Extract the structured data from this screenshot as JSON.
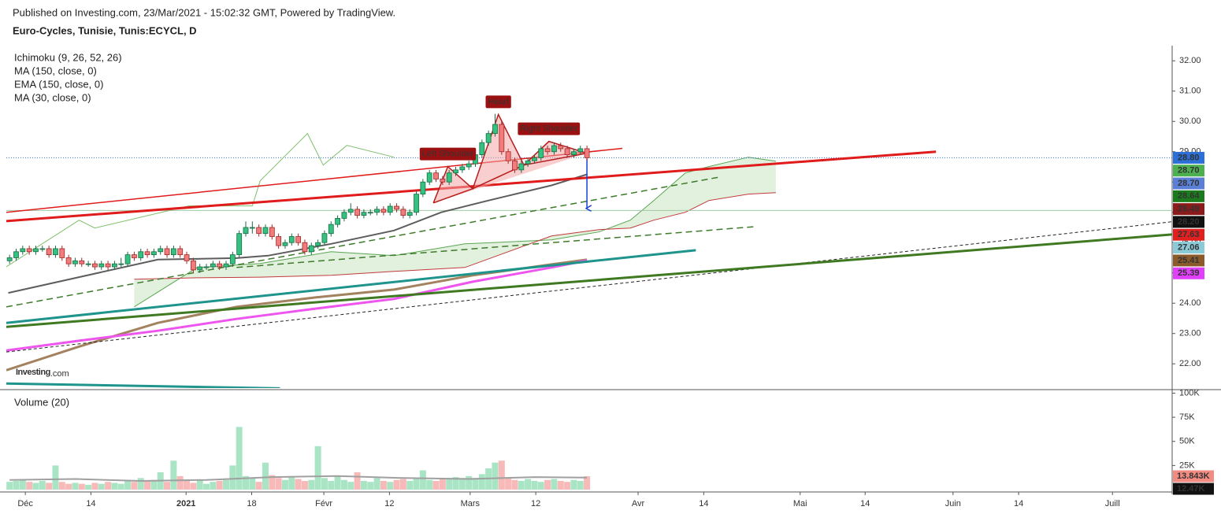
{
  "chart_data": {
    "type": "candlestick",
    "publisher": "Published on Investing.com, 23/Mar/2021 - 15:02:32 GMT, Powered by TradingView.",
    "title": "Euro-Cycles, Tunisie, Tunis:ECYCL, D",
    "indicators": [
      "Ichimoku (9, 26, 52, 26)",
      "MA (150, close, 0)",
      "EMA (150, close, 0)",
      "MA (30, close, 0)"
    ],
    "logo": {
      "brand": "Investing",
      "suffix": ".com"
    },
    "up_color": "#33c27f",
    "down_color": "#f17c7c",
    "up_edge": "#1c6b45",
    "down_edge": "#a02828",
    "xlim": [
      -0.5,
      177.2
    ],
    "xticks": [
      {
        "value": 2.4,
        "label": "Déc"
      },
      {
        "value": 12.4,
        "label": "14"
      },
      {
        "value": 26.9,
        "label": "2021"
      },
      {
        "value": 36.9,
        "label": "18"
      },
      {
        "value": 47.9,
        "label": "Févr"
      },
      {
        "value": 57.9,
        "label": "12"
      },
      {
        "value": 70.2,
        "label": "Mars"
      },
      {
        "value": 80.2,
        "label": "12"
      },
      {
        "value": 95.8,
        "label": "Avr"
      },
      {
        "value": 105.8,
        "label": "14"
      },
      {
        "value": 120.5,
        "label": "Mai"
      },
      {
        "value": 130.4,
        "label": "14"
      },
      {
        "value": 143.8,
        "label": "Juin"
      },
      {
        "value": 153.8,
        "label": "14"
      },
      {
        "value": 168.1,
        "label": "Juill"
      }
    ],
    "ylim": [
      21.2,
      32.5
    ],
    "yticks": [
      {
        "value": 22,
        "label": "22.00"
      },
      {
        "value": 23,
        "label": "23.00"
      },
      {
        "value": 24,
        "label": "24.00"
      },
      {
        "value": 25,
        "label": "25.00"
      },
      {
        "value": 26,
        "label": "26.00"
      },
      {
        "value": 27,
        "label": "27.00"
      },
      {
        "value": 28,
        "label": "28.00"
      },
      {
        "value": 29,
        "label": "29.00"
      },
      {
        "value": 30,
        "label": "30.00"
      },
      {
        "value": 31,
        "label": "31.00"
      },
      {
        "value": 32,
        "label": "32.00"
      }
    ],
    "ohlc": [
      [
        25.4,
        25.6,
        25.3,
        25.5
      ],
      [
        25.5,
        25.8,
        25.4,
        25.7
      ],
      [
        25.7,
        25.9,
        25.6,
        25.8
      ],
      [
        25.8,
        25.9,
        25.6,
        25.7
      ],
      [
        25.7,
        25.9,
        25.6,
        25.8
      ],
      [
        25.8,
        25.9,
        25.7,
        25.8
      ],
      [
        25.8,
        25.9,
        25.5,
        25.6
      ],
      [
        25.6,
        25.9,
        25.5,
        25.8
      ],
      [
        25.8,
        25.9,
        25.4,
        25.5
      ],
      [
        25.5,
        25.6,
        25.2,
        25.3
      ],
      [
        25.3,
        25.5,
        25.2,
        25.4
      ],
      [
        25.4,
        25.5,
        25.2,
        25.3
      ],
      [
        25.3,
        25.4,
        25.2,
        25.3
      ],
      [
        25.3,
        25.4,
        25.1,
        25.2
      ],
      [
        25.2,
        25.4,
        25.1,
        25.3
      ],
      [
        25.3,
        25.4,
        25.1,
        25.2
      ],
      [
        25.2,
        25.4,
        25.1,
        25.3
      ],
      [
        25.3,
        25.5,
        25.2,
        25.3
      ],
      [
        25.3,
        25.7,
        25.2,
        25.6
      ],
      [
        25.6,
        25.7,
        25.4,
        25.5
      ],
      [
        25.5,
        25.8,
        25.4,
        25.7
      ],
      [
        25.7,
        25.8,
        25.5,
        25.6
      ],
      [
        25.6,
        25.8,
        25.5,
        25.7
      ],
      [
        25.7,
        25.9,
        25.6,
        25.8
      ],
      [
        25.8,
        25.9,
        25.5,
        25.6
      ],
      [
        25.6,
        25.9,
        25.5,
        25.8
      ],
      [
        25.8,
        25.9,
        25.5,
        25.6
      ],
      [
        25.6,
        25.7,
        25.3,
        25.4
      ],
      [
        25.4,
        25.5,
        25.0,
        25.1
      ],
      [
        25.1,
        25.3,
        25.0,
        25.2
      ],
      [
        25.2,
        25.3,
        25.1,
        25.2
      ],
      [
        25.2,
        25.4,
        25.1,
        25.3
      ],
      [
        25.3,
        25.4,
        25.1,
        25.2
      ],
      [
        25.2,
        25.4,
        25.1,
        25.3
      ],
      [
        25.3,
        25.7,
        25.2,
        25.6
      ],
      [
        25.6,
        26.4,
        25.5,
        26.3
      ],
      [
        26.3,
        26.7,
        26.2,
        26.5
      ],
      [
        26.5,
        26.7,
        26.3,
        26.5
      ],
      [
        26.5,
        26.6,
        26.2,
        26.3
      ],
      [
        26.3,
        26.6,
        26.2,
        26.5
      ],
      [
        26.5,
        26.6,
        26.1,
        26.2
      ],
      [
        26.2,
        26.3,
        25.8,
        25.9
      ],
      [
        25.9,
        26.1,
        25.8,
        26.0
      ],
      [
        26.0,
        26.3,
        25.9,
        26.2
      ],
      [
        26.2,
        26.3,
        25.9,
        26.0
      ],
      [
        26.0,
        26.1,
        25.6,
        25.7
      ],
      [
        25.7,
        26.0,
        25.6,
        25.9
      ],
      [
        25.9,
        26.1,
        25.8,
        26.0
      ],
      [
        26.0,
        26.4,
        25.9,
        26.3
      ],
      [
        26.3,
        26.7,
        26.2,
        26.6
      ],
      [
        26.6,
        26.9,
        26.5,
        26.8
      ],
      [
        26.8,
        27.1,
        26.7,
        27.0
      ],
      [
        27.0,
        27.3,
        26.9,
        27.1
      ],
      [
        27.1,
        27.2,
        26.8,
        26.9
      ],
      [
        26.9,
        27.1,
        26.8,
        27.0
      ],
      [
        27.0,
        27.1,
        26.9,
        27.0
      ],
      [
        27.0,
        27.2,
        26.9,
        27.1
      ],
      [
        27.1,
        27.2,
        26.9,
        27.0
      ],
      [
        27.0,
        27.3,
        26.9,
        27.2
      ],
      [
        27.2,
        27.3,
        27.0,
        27.1
      ],
      [
        27.1,
        27.2,
        26.8,
        26.9
      ],
      [
        26.9,
        27.1,
        26.8,
        27.0
      ],
      [
        27.0,
        27.7,
        26.9,
        27.6
      ],
      [
        27.6,
        28.1,
        27.5,
        28.0
      ],
      [
        28.0,
        28.4,
        27.9,
        28.3
      ],
      [
        28.3,
        28.4,
        28.0,
        28.1
      ],
      [
        28.1,
        28.2,
        27.9,
        28.0
      ],
      [
        28.0,
        28.4,
        27.9,
        28.3
      ],
      [
        28.3,
        28.5,
        28.2,
        28.4
      ],
      [
        28.4,
        28.6,
        28.3,
        28.5
      ],
      [
        28.5,
        28.7,
        28.4,
        28.6
      ],
      [
        28.6,
        29.0,
        28.5,
        28.9
      ],
      [
        28.9,
        29.4,
        28.8,
        29.3
      ],
      [
        29.3,
        29.7,
        29.2,
        29.6
      ],
      [
        29.6,
        30.25,
        29.5,
        29.9
      ],
      [
        29.9,
        30.0,
        28.9,
        29.0
      ],
      [
        29.0,
        29.1,
        28.6,
        28.7
      ],
      [
        28.7,
        28.8,
        28.3,
        28.4
      ],
      [
        28.4,
        28.7,
        28.3,
        28.6
      ],
      [
        28.6,
        28.8,
        28.5,
        28.7
      ],
      [
        28.7,
        28.9,
        28.6,
        28.8
      ],
      [
        28.8,
        29.2,
        28.7,
        29.1
      ],
      [
        29.1,
        29.2,
        28.9,
        29.0
      ],
      [
        29.0,
        29.3,
        28.9,
        29.2
      ],
      [
        29.2,
        29.3,
        29.0,
        29.1
      ],
      [
        29.1,
        29.2,
        28.8,
        28.9
      ],
      [
        28.9,
        29.1,
        28.8,
        29.0
      ],
      [
        29.0,
        29.2,
        28.9,
        29.1
      ],
      [
        29.1,
        29.2,
        28.7,
        28.8
      ]
    ],
    "overlays": [
      {
        "color": "#5d5d5d",
        "width": 2,
        "x": [
          -0.2,
          22.6,
          34.6,
          39.4,
          49,
          58.6,
          65.8,
          73,
          82.6,
          88
        ],
        "values": [
          24.34,
          25.44,
          25.49,
          25.57,
          25.96,
          26.4,
          27.0,
          27.39,
          27.89,
          28.25
        ]
      },
      {
        "color": "#a3825f",
        "width": 3,
        "x": [
          -0.5,
          10.6,
          22.6,
          34.6,
          46.6,
          58.6,
          70.6,
          82.6,
          88
        ],
        "values": [
          21.79,
          22.57,
          23.35,
          23.88,
          24.19,
          24.45,
          24.92,
          25.28,
          25.44
        ]
      },
      {
        "color": "#ee55ee",
        "width": 3,
        "x": [
          -0.5,
          10.6,
          22.6,
          34.6,
          46.6,
          58.6,
          70.6,
          82.6,
          88
        ],
        "values": [
          22.44,
          22.76,
          23.09,
          23.48,
          23.82,
          24.14,
          24.71,
          25.18,
          25.41
        ]
      },
      {
        "color": "#7fbf6a",
        "width": 1,
        "x": [
          -0.5,
          10.6,
          13,
          27.3,
          37,
          38.2,
          45.4,
          47.8,
          51.4,
          58.6
        ],
        "values": [
          25.2,
          26.74,
          26.48,
          27.21,
          27.21,
          28.04,
          29.6,
          28.56,
          29.21,
          28.82
        ]
      }
    ],
    "cloud": {
      "color_a": "#5aa552",
      "color_b": "#c23a3a",
      "fill": "#d8ecd3",
      "x": [
        19.0,
        28.6,
        38.2,
        49.0,
        58.6,
        69.4,
        82.6,
        89.8,
        94.6,
        98.2,
        103.0,
        106.6,
        112.6,
        116.8
      ],
      "span_a": [
        23.88,
        25.18,
        25.31,
        25.7,
        25.57,
        25.96,
        26.09,
        26.35,
        26.74,
        27.39,
        28.3,
        28.51,
        28.82,
        28.69
      ],
      "span_b": [
        24.79,
        24.84,
        24.86,
        24.92,
        25.05,
        25.18,
        26.22,
        26.43,
        26.48,
        26.74,
        27.0,
        27.39,
        27.6,
        27.65
      ]
    },
    "trendlines": [
      {
        "color": "#e01b1b",
        "width": 3,
        "dashed": false,
        "points": [
          -0.5,
          26.71,
          141.2,
          29.0
        ]
      },
      {
        "color": "#e01b1b",
        "width": 1.5,
        "dashed": false,
        "points": [
          -0.5,
          27.0,
          93.4,
          29.11
        ]
      },
      {
        "color": "#3d7a2a",
        "width": 1.5,
        "dashed": true,
        "points": [
          -0.5,
          23.88,
          108.4,
          28.17
        ]
      },
      {
        "color": "#3d7a2a",
        "width": 1.5,
        "dashed": true,
        "points": [
          34.6,
          25.18,
          113.8,
          26.53
        ]
      },
      {
        "color": "#222222",
        "width": 1,
        "dashed": true,
        "points": [
          -0.5,
          22.39,
          177.2,
          26.69
        ]
      },
      {
        "color": "#3f7a22",
        "width": 3,
        "dashed": false,
        "points": [
          -0.5,
          23.22,
          177.2,
          26.27
        ]
      },
      {
        "color": "#1f948c",
        "width": 3,
        "dashed": false,
        "points": [
          -0.5,
          23.35,
          104.6,
          25.75
        ]
      },
      {
        "color": "#1f948c",
        "width": 3,
        "dashed": false,
        "points": [
          -0.5,
          21.35,
          41.2,
          21.19
        ]
      },
      {
        "color": "#1a3fd6",
        "width": 1.5,
        "dashed": false,
        "arrow": true,
        "points": [
          88,
          28.77,
          88,
          27.13
        ]
      }
    ],
    "pattern": {
      "color": "#b71c1c",
      "fill": "#f4a6a6",
      "points": [
        [
          64.6,
          27.31
        ],
        [
          66.8,
          28.51
        ],
        [
          70.6,
          27.78
        ],
        [
          74.5,
          30.23
        ],
        [
          78.4,
          28.56
        ],
        [
          82.2,
          29.34
        ],
        [
          88,
          28.95
        ]
      ],
      "annotations": [
        "Left Shoulder",
        "Head",
        "Right Shoulder"
      ]
    },
    "price_labels": [
      {
        "value": 28.8,
        "label": "28.80",
        "color": "#2c6fd6",
        "line": "dotted"
      },
      {
        "value": 28.7,
        "label": "28.70",
        "color": "#4caf50"
      },
      {
        "value": 28.7,
        "label": "28.70",
        "color": "#5b7fd6"
      },
      {
        "value": 28.64,
        "label": "28.64",
        "color": "#1b7a1b"
      },
      {
        "value": 28.49,
        "label": "28.49",
        "color": "#8b1a1a"
      },
      {
        "value": 28.2,
        "label": "28.20",
        "color": "#111111"
      },
      {
        "value": 27.63,
        "label": "27.63",
        "color": "#e02020"
      },
      {
        "value": 27.06,
        "label": "27.06",
        "color": "#8ccad8",
        "line": "solid"
      },
      {
        "value": 25.41,
        "label": "25.41",
        "color": "#8b5a2b"
      },
      {
        "value": 25.39,
        "label": "25.39",
        "color": "#e040fb"
      }
    ],
    "volume": {
      "title": "Volume (20)",
      "up_color": "#a9e5c5",
      "down_color": "#f8b9b9",
      "ylim": [
        0,
        102000
      ],
      "yticks": [
        {
          "value": 25000,
          "label": "25K"
        },
        {
          "value": 50000,
          "label": "50K"
        },
        {
          "value": 75000,
          "label": "75K"
        },
        {
          "value": 100000,
          "label": "100K"
        }
      ],
      "values": [
        8000,
        9000,
        10000,
        8000,
        7000,
        9000,
        7000,
        25000,
        8000,
        6000,
        7000,
        6000,
        5000,
        7000,
        6000,
        8000,
        7000,
        6000,
        9000,
        8000,
        12000,
        9000,
        10000,
        18000,
        8000,
        30000,
        14000,
        9000,
        7000,
        10000,
        6000,
        8000,
        9000,
        10000,
        25000,
        65000,
        14000,
        12000,
        8000,
        28000,
        15000,
        12000,
        10000,
        14000,
        11000,
        9000,
        10000,
        45000,
        12000,
        9000,
        14000,
        10000,
        8000,
        18000,
        9000,
        8000,
        12000,
        9000,
        8000,
        10000,
        11000,
        9000,
        12000,
        20000,
        10000,
        9000,
        11000,
        12000,
        13000,
        12000,
        14000,
        12000,
        16000,
        22000,
        28000,
        30000,
        12000,
        10000,
        9000,
        11000,
        9000,
        8000,
        10000,
        11000,
        9000,
        8000,
        10000,
        9000,
        13843
      ],
      "ma": {
        "color": "#a0a0a0",
        "x": [
          0,
          10,
          20,
          30,
          40,
          50,
          60,
          70,
          80,
          88
        ],
        "values": [
          10000,
          11000,
          9000,
          10000,
          13000,
          14000,
          12000,
          11000,
          13000,
          12470
        ]
      },
      "last_labels": [
        {
          "value": 13843,
          "label": "13.843K",
          "color": "#f28b82"
        },
        {
          "value": 12470,
          "label": "12.47K",
          "color": "#111111"
        }
      ]
    }
  }
}
